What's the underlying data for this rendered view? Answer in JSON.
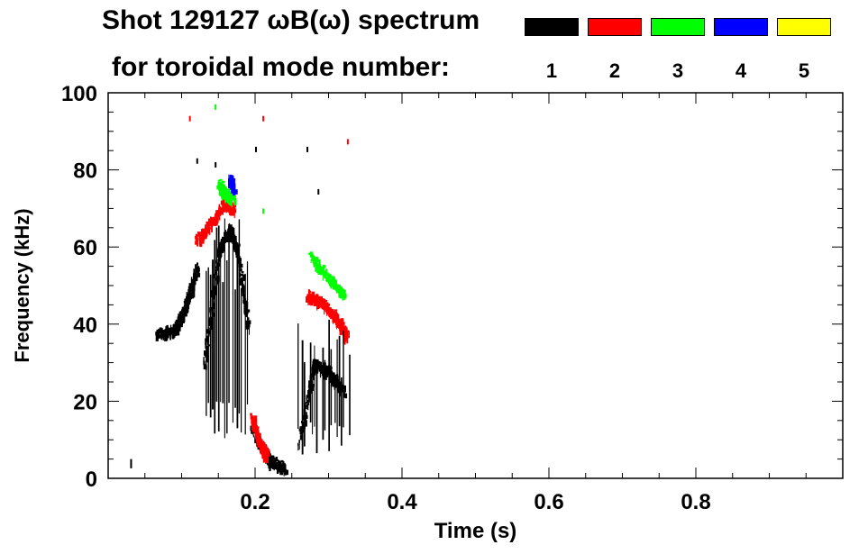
{
  "chart_data": {
    "type": "heatmap",
    "title_line1": "Shot 129127 ωB(ω) spectrum",
    "title_line2": "for toroidal mode number:",
    "xlabel": "Time (s)",
    "ylabel": "Frequency (kHz)",
    "xlim": [
      0.0,
      1.0
    ],
    "ylim": [
      0,
      100
    ],
    "xticks": [
      0.2,
      0.4,
      0.6,
      0.8
    ],
    "xtick_labels": [
      "0.2",
      "0.4",
      "0.6",
      "0.8"
    ],
    "yticks": [
      0,
      20,
      40,
      60,
      80,
      100
    ],
    "ytick_labels": [
      "0",
      "20",
      "40",
      "60",
      "80",
      "100"
    ],
    "legend": [
      {
        "mode": "1",
        "color": "#000000"
      },
      {
        "mode": "2",
        "color": "#ff0000"
      },
      {
        "mode": "3",
        "color": "#00ff00"
      },
      {
        "mode": "4",
        "color": "#0000ff"
      },
      {
        "mode": "5",
        "color": "#ffff00"
      }
    ],
    "features": [
      {
        "mode": "1",
        "desc": "frequency sweep",
        "points": [
          [
            0.065,
            38
          ],
          [
            0.09,
            39
          ],
          [
            0.1,
            43
          ],
          [
            0.11,
            48
          ],
          [
            0.12,
            55
          ]
        ]
      },
      {
        "mode": "1",
        "desc": "chirping bursts",
        "points": [
          [
            0.13,
            30
          ],
          [
            0.15,
            60
          ],
          [
            0.165,
            65
          ],
          [
            0.175,
            60
          ],
          [
            0.19,
            40
          ]
        ]
      },
      {
        "mode": "1",
        "desc": "low-frequency sweep",
        "points": [
          [
            0.195,
            14
          ],
          [
            0.21,
            8
          ],
          [
            0.22,
            5
          ],
          [
            0.24,
            3
          ]
        ]
      },
      {
        "mode": "1",
        "desc": "late bursts",
        "points": [
          [
            0.26,
            10
          ],
          [
            0.28,
            30
          ],
          [
            0.3,
            28
          ],
          [
            0.32,
            23
          ]
        ]
      },
      {
        "mode": "2",
        "desc": "mode 2 band",
        "points": [
          [
            0.12,
            62
          ],
          [
            0.14,
            67
          ],
          [
            0.16,
            72
          ],
          [
            0.17,
            70
          ]
        ]
      },
      {
        "mode": "2",
        "desc": "mode 2 late",
        "points": [
          [
            0.27,
            48
          ],
          [
            0.29,
            46
          ],
          [
            0.31,
            42
          ],
          [
            0.325,
            37
          ]
        ]
      },
      {
        "mode": "2",
        "desc": "mode 2 low",
        "points": [
          [
            0.195,
            16
          ],
          [
            0.205,
            10
          ],
          [
            0.215,
            6
          ]
        ]
      },
      {
        "mode": "3",
        "desc": "mode 3 band",
        "points": [
          [
            0.15,
            77
          ],
          [
            0.16,
            74
          ],
          [
            0.17,
            73
          ]
        ]
      },
      {
        "mode": "3",
        "desc": "mode 3 late",
        "points": [
          [
            0.275,
            58
          ],
          [
            0.3,
            52
          ],
          [
            0.32,
            48
          ]
        ]
      },
      {
        "mode": "4",
        "desc": "mode 4 spot",
        "points": [
          [
            0.165,
            78
          ],
          [
            0.17,
            76
          ]
        ]
      }
    ]
  }
}
